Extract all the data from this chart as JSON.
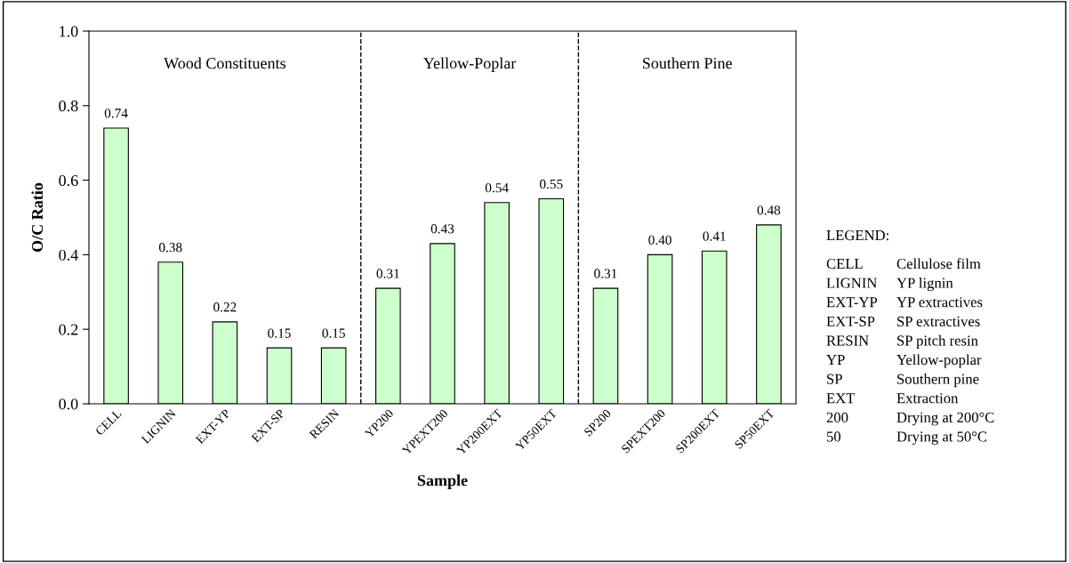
{
  "chart_data": {
    "type": "bar",
    "xlabel": "Sample",
    "ylabel": "O/C Ratio",
    "categories": [
      "CELL",
      "LIGNIN",
      "EXT-YP",
      "EXT-SP",
      "RESIN",
      "YP200",
      "YPEXT200",
      "YP200EXT",
      "YP50EXT",
      "SP200",
      "SPEXT200",
      "SP200EXT",
      "SP50EXT"
    ],
    "values": [
      0.74,
      0.38,
      0.22,
      0.15,
      0.15,
      0.31,
      0.43,
      0.54,
      0.55,
      0.31,
      0.4,
      0.41,
      0.48
    ],
    "value_labels": [
      "0.74",
      "0.38",
      "0.22",
      "0.15",
      "0.15",
      "0.31",
      "0.43",
      "0.54",
      "0.55",
      "0.31",
      "0.40",
      "0.41",
      "0.48"
    ],
    "color": "#ccffcc",
    "ylim": [
      0,
      1
    ],
    "yticks": [
      {
        "value": 0,
        "label": "0.0"
      },
      {
        "value": 0.2,
        "label": "0.2"
      },
      {
        "value": 0.4,
        "label": "0.4"
      },
      {
        "value": 0.6,
        "label": "0.6"
      },
      {
        "value": 0.8,
        "label": "0.8"
      },
      {
        "value": 1,
        "label": "1.0"
      }
    ],
    "annotations": [
      "Wood Constituents",
      "Yellow-Poplar",
      "Southern Pine",
      "LEGEND:",
      "CELL",
      "Cellulose film",
      "LIGNIN",
      "YP lignin",
      "EXT-YP",
      "YP extractives",
      "EXT-SP",
      "SP extractives",
      "RESIN",
      "SP pitch resin",
      "YP",
      "Yellow-poplar",
      "SP",
      "Southern pine",
      "EXT",
      "Extraction",
      "200",
      "Drying at 200°C",
      "50",
      "Drying at 50°C"
    ],
    "grid": false,
    "legend": false
  }
}
